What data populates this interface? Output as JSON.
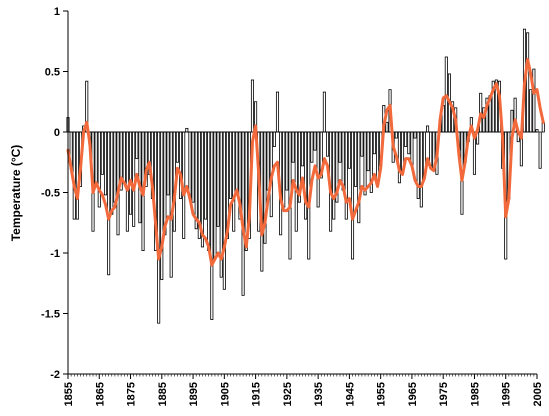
{
  "chart_data": {
    "type": "bar",
    "overlay_type": "line",
    "title": "",
    "xlabel": "",
    "ylabel": "Temperature (°C)",
    "x_start": 1855,
    "x_end": 2005,
    "ylim": [
      -2,
      1
    ],
    "y_ticks": [
      1,
      0.5,
      0,
      -0.5,
      -1,
      -1.5,
      -2
    ],
    "y_tick_labels": [
      "1",
      "0.5",
      "0",
      "-0.5",
      "-1",
      "-1.5",
      "-2"
    ],
    "x_ticks": [
      1855,
      1865,
      1875,
      1885,
      1895,
      1905,
      1915,
      1925,
      1935,
      1945,
      1955,
      1965,
      1975,
      1985,
      1995,
      2005
    ],
    "x_tick_labels": [
      "1855",
      "1865",
      "1875",
      "1885",
      "1895",
      "1905",
      "1915",
      "1925",
      "1935",
      "1945",
      "1955",
      "1965",
      "1975",
      "1985",
      "1995",
      "2005"
    ],
    "grid": false,
    "legend": "none",
    "colors": {
      "bar_fill": "#ffffff",
      "bar_stroke": "#000000",
      "line": "#f26a3b",
      "axis": "#000000"
    },
    "series": [
      {
        "type": "bar",
        "values": [
          0.12,
          -0.3,
          -0.72,
          -0.72,
          -0.45,
          0.05,
          0.42,
          -0.1,
          -0.82,
          -0.45,
          -0.62,
          -0.35,
          -0.52,
          -1.18,
          -0.68,
          -0.58,
          -0.85,
          -0.48,
          -0.42,
          -0.82,
          -0.68,
          -0.78,
          -0.22,
          -0.75,
          -0.98,
          -0.45,
          -0.35,
          -0.55,
          -0.98,
          -1.58,
          -1.22,
          -0.85,
          -0.52,
          -1.2,
          -0.82,
          -0.25,
          -0.55,
          -0.88,
          0.03,
          -0.55,
          -0.58,
          -0.8,
          -0.88,
          -0.95,
          -0.72,
          -0.98,
          -1.55,
          -1.05,
          -0.78,
          -1.2,
          -1.3,
          -0.88,
          -0.55,
          -0.82,
          -0.5,
          -0.72,
          -1.35,
          -0.98,
          -0.88,
          0.43,
          0.25,
          -0.82,
          -1.15,
          -0.92,
          -0.48,
          -0.7,
          -0.12,
          0.33,
          -0.85,
          -0.62,
          -0.48,
          -1.05,
          -0.25,
          -0.82,
          -0.58,
          -0.28,
          -0.72,
          -1.05,
          -0.25,
          -0.15,
          -0.62,
          -0.38,
          0.33,
          -0.2,
          -0.82,
          -0.72,
          -0.58,
          -0.25,
          -0.48,
          -0.72,
          -0.3,
          -1.05,
          -0.45,
          -0.75,
          -0.2,
          -0.52,
          -0.32,
          -0.5,
          -0.18,
          -0.4,
          -0.28,
          0.22,
          0.08,
          0.35,
          -0.25,
          -0.05,
          -0.42,
          -0.32,
          -0.12,
          -0.18,
          -0.28,
          -0.05,
          -0.55,
          -0.62,
          -0.38,
          0.05,
          -0.28,
          -0.3,
          -0.35,
          0.1,
          0.22,
          0.62,
          0.48,
          0.25,
          0.2,
          -0.15,
          -0.68,
          -0.25,
          -0.08,
          0.12,
          -0.35,
          -0.1,
          0.32,
          0.2,
          0.28,
          0.3,
          0.42,
          0.43,
          0.42,
          -0.3,
          -1.05,
          -0.55,
          0.18,
          0.28,
          -0.08,
          -0.28,
          0.85,
          0.82,
          0.35,
          0.52,
          0.02,
          -0.3,
          0.08
        ]
      },
      {
        "type": "line",
        "values": [
          -0.15,
          -0.3,
          -0.45,
          -0.55,
          -0.3,
          0,
          0.08,
          -0.1,
          -0.5,
          -0.42,
          -0.48,
          -0.52,
          -0.6,
          -0.72,
          -0.65,
          -0.62,
          -0.5,
          -0.38,
          -0.42,
          -0.48,
          -0.4,
          -0.48,
          -0.35,
          -0.45,
          -0.52,
          -0.32,
          -0.25,
          -0.45,
          -0.75,
          -1.05,
          -0.95,
          -0.78,
          -0.7,
          -0.72,
          -0.55,
          -0.3,
          -0.35,
          -0.52,
          -0.45,
          -0.55,
          -0.68,
          -0.72,
          -0.75,
          -0.85,
          -0.88,
          -0.95,
          -1.1,
          -1.05,
          -1.0,
          -1.05,
          -0.95,
          -0.82,
          -0.6,
          -0.55,
          -0.48,
          -0.6,
          -0.8,
          -0.95,
          -0.7,
          -0.08,
          0.05,
          -0.35,
          -0.85,
          -0.75,
          -0.55,
          -0.38,
          -0.28,
          -0.25,
          -0.55,
          -0.65,
          -0.65,
          -0.62,
          -0.4,
          -0.48,
          -0.52,
          -0.38,
          -0.58,
          -0.62,
          -0.4,
          -0.28,
          -0.38,
          -0.35,
          -0.22,
          -0.28,
          -0.5,
          -0.55,
          -0.5,
          -0.4,
          -0.45,
          -0.58,
          -0.55,
          -0.72,
          -0.65,
          -0.58,
          -0.45,
          -0.48,
          -0.45,
          -0.42,
          -0.35,
          -0.45,
          -0.3,
          0.05,
          0.18,
          0.22,
          -0.12,
          -0.2,
          -0.32,
          -0.35,
          -0.22,
          -0.22,
          -0.28,
          -0.4,
          -0.45,
          -0.45,
          -0.38,
          -0.22,
          -0.3,
          -0.32,
          -0.2,
          0.1,
          0.28,
          0.3,
          0.25,
          0.2,
          0.1,
          -0.18,
          -0.4,
          -0.25,
          -0.05,
          0.05,
          -0.05,
          0.02,
          0.15,
          0.12,
          0.22,
          0.28,
          0.35,
          0.4,
          0.3,
          -0.05,
          -0.7,
          -0.55,
          -0.05,
          0.1,
          0.0,
          -0.05,
          0.4,
          0.6,
          0.48,
          0.32,
          0.35,
          0.2,
          0.08
        ]
      }
    ]
  }
}
